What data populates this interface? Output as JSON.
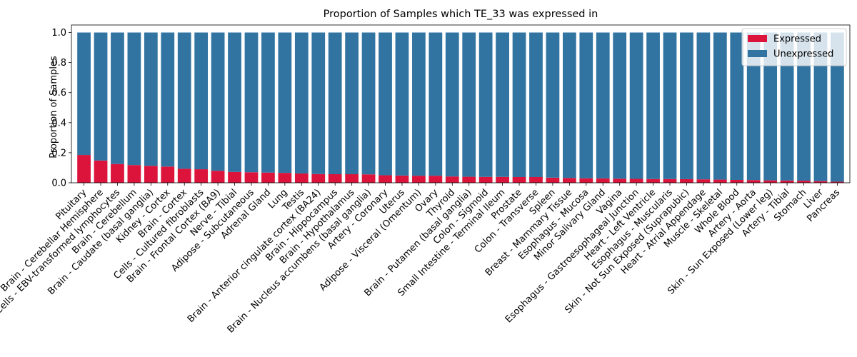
{
  "chart_data": {
    "type": "bar",
    "stacked": true,
    "title": "Proportion of Samples which TE_33 was expressed in",
    "ylabel": "Proportion of Samples",
    "xlabel": "",
    "ylim": [
      0,
      1.05
    ],
    "yticks": [
      "0.0",
      "0.2",
      "0.4",
      "0.6",
      "0.8",
      "1.0"
    ],
    "legend_position": "top-right",
    "categories": [
      "Pituitary",
      "Brain - Cerebellar Hemisphere",
      "Cells - EBV-transformed lymphocytes",
      "Brain - Cerebellum",
      "Brain - Caudate (basal ganglia)",
      "Kidney - Cortex",
      "Brain - Cortex",
      "Cells - Cultured fibroblasts",
      "Brain - Frontal Cortex (BA9)",
      "Nerve - Tibial",
      "Adipose - Subcutaneous",
      "Adrenal Gland",
      "Lung",
      "Testis",
      "Brain - Anterior cingulate cortex (BA24)",
      "Brain - Hippocampus",
      "Brain - Hypothalamus",
      "Brain - Nucleus accumbens (basal ganglia)",
      "Artery - Coronary",
      "Uterus",
      "Adipose - Visceral (Omentum)",
      "Ovary",
      "Thyroid",
      "Brain - Putamen (basal ganglia)",
      "Colon - Sigmoid",
      "Small Intestine - Terminal Ileum",
      "Prostate",
      "Colon - Transverse",
      "Spleen",
      "Breast - Mammary Tissue",
      "Esophagus - Mucosa",
      "Minor Salivary Gland",
      "Vagina",
      "Esophagus - Gastroesophageal Junction",
      "Heart - Left Ventricle",
      "Esophagus - Muscularis",
      "Skin - Not Sun Exposed (Suprapubic)",
      "Heart - Atrial Appendage",
      "Muscle - Skeletal",
      "Whole Blood",
      "Artery - Aorta",
      "Skin - Sun Exposed (Lower leg)",
      "Artery - Tibial",
      "Stomach",
      "Liver",
      "Pancreas"
    ],
    "series": [
      {
        "name": "Expressed",
        "color": "#dc143c",
        "values": [
          0.185,
          0.148,
          0.125,
          0.118,
          0.113,
          0.108,
          0.093,
          0.09,
          0.08,
          0.072,
          0.07,
          0.068,
          0.066,
          0.062,
          0.058,
          0.057,
          0.057,
          0.056,
          0.05,
          0.048,
          0.047,
          0.047,
          0.042,
          0.04,
          0.039,
          0.039,
          0.038,
          0.038,
          0.034,
          0.032,
          0.03,
          0.029,
          0.027,
          0.026,
          0.025,
          0.025,
          0.024,
          0.023,
          0.021,
          0.019,
          0.018,
          0.016,
          0.015,
          0.014,
          0.011,
          0.007
        ]
      },
      {
        "name": "Unexpressed",
        "color": "#3274a1",
        "values": [
          0.815,
          0.852,
          0.875,
          0.882,
          0.887,
          0.892,
          0.907,
          0.91,
          0.92,
          0.928,
          0.93,
          0.932,
          0.934,
          0.938,
          0.942,
          0.943,
          0.943,
          0.944,
          0.95,
          0.952,
          0.953,
          0.953,
          0.958,
          0.96,
          0.961,
          0.961,
          0.962,
          0.962,
          0.966,
          0.968,
          0.97,
          0.971,
          0.973,
          0.974,
          0.975,
          0.975,
          0.976,
          0.977,
          0.979,
          0.981,
          0.982,
          0.984,
          0.985,
          0.986,
          0.989,
          0.993
        ]
      }
    ]
  }
}
